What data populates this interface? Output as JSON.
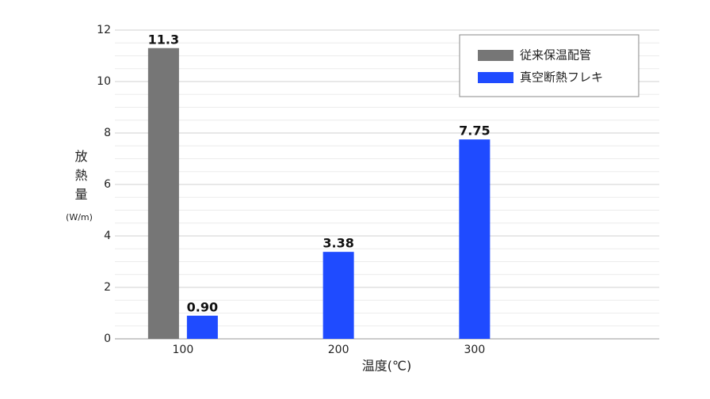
{
  "chart_data": {
    "type": "bar",
    "y_label": "放熱量",
    "y_unit": "(W/m)",
    "x_label": "温度(℃)",
    "categories": [
      "100",
      "200",
      "300",
      null
    ],
    "series": [
      {
        "name": "従来保温配管",
        "color": "#767676",
        "values": [
          11.3,
          null,
          null,
          null
        ]
      },
      {
        "name": "真空断熱フレキ",
        "color": "#1f4bff",
        "values": [
          0.9,
          3.38,
          7.75,
          null
        ],
        "value_labels": [
          "0.90",
          "3.38",
          "7.75",
          null
        ]
      }
    ],
    "ylim": [
      0,
      12
    ],
    "yticks": [
      0,
      2,
      4,
      6,
      8,
      10,
      12
    ],
    "grid": true,
    "legend": "upper right"
  }
}
